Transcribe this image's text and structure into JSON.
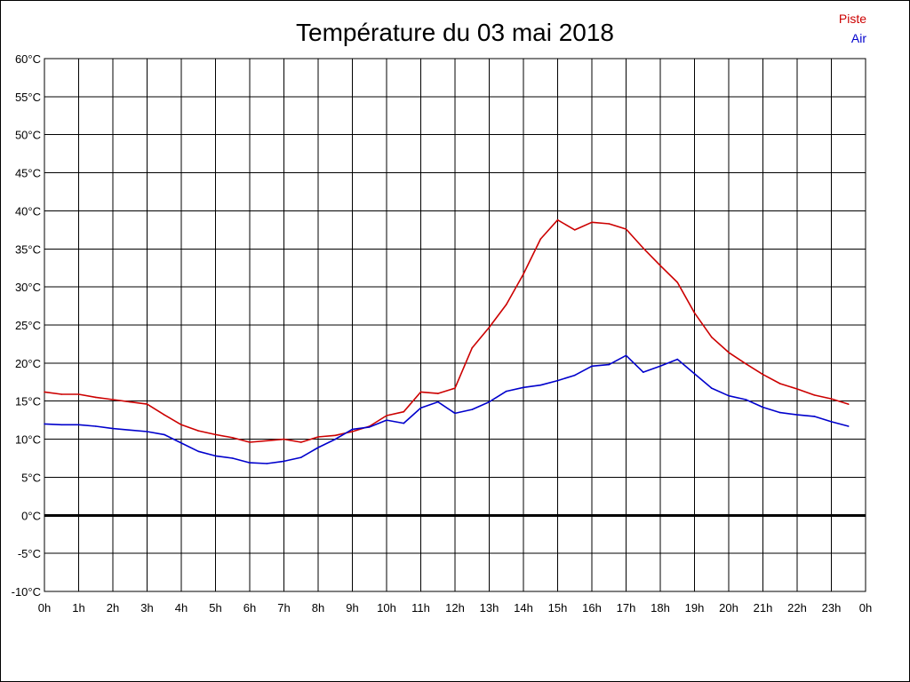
{
  "chart_data": {
    "type": "line",
    "title": "Température du 03 mai 2018",
    "y_ticks": [
      "60°C",
      "55°C",
      "50°C",
      "45°C",
      "40°C",
      "35°C",
      "30°C",
      "25°C",
      "20°C",
      "15°C",
      "10°C",
      "5°C",
      "0°C",
      "-5°C",
      "-10°C"
    ],
    "ylim": [
      -10,
      60
    ],
    "y_step": 5,
    "x_ticks": [
      "0h",
      "1h",
      "2h",
      "3h",
      "4h",
      "5h",
      "6h",
      "7h",
      "8h",
      "9h",
      "10h",
      "11h",
      "12h",
      "13h",
      "14h",
      "15h",
      "16h",
      "17h",
      "18h",
      "19h",
      "20h",
      "21h",
      "22h",
      "23h",
      "0h"
    ],
    "xlim": [
      0,
      24
    ],
    "grid": true,
    "legend_position": "top-right",
    "baseline": 0,
    "series": [
      {
        "name": "Piste",
        "color": "#cc0000",
        "x": [
          0,
          0.5,
          1,
          1.5,
          2,
          2.5,
          3,
          3.5,
          4,
          4.5,
          5,
          5.5,
          6,
          6.5,
          7,
          7.5,
          8,
          8.5,
          9,
          9.5,
          10,
          10.5,
          11,
          11.5,
          12,
          12.5,
          13,
          13.5,
          14,
          14.5,
          15,
          15.5,
          16,
          16.5,
          17,
          17.5,
          18,
          18.5,
          19,
          19.5,
          20,
          20.5,
          21,
          21.5,
          22,
          22.5,
          23,
          23.5
        ],
        "values": [
          16.2,
          15.9,
          15.9,
          15.5,
          15.2,
          14.9,
          14.6,
          13.2,
          11.9,
          11.1,
          10.6,
          10.2,
          9.6,
          9.8,
          10.0,
          9.6,
          10.3,
          10.5,
          11.0,
          11.7,
          13.1,
          13.6,
          16.2,
          16.0,
          16.7,
          22.0,
          24.7,
          27.7,
          31.7,
          36.3,
          38.8,
          37.5,
          38.5,
          38.3,
          37.6,
          35.1,
          32.8,
          30.6,
          26.6,
          23.4,
          21.4,
          19.9,
          18.5,
          17.3,
          16.6,
          15.8,
          15.3,
          14.6
        ]
      },
      {
        "name": "Air",
        "color": "#0000cc",
        "x": [
          0,
          0.5,
          1,
          1.5,
          2,
          2.5,
          3,
          3.5,
          4,
          4.5,
          5,
          5.5,
          6,
          6.5,
          7,
          7.5,
          8,
          8.5,
          9,
          9.5,
          10,
          10.5,
          11,
          11.5,
          12,
          12.5,
          13,
          13.5,
          14,
          14.5,
          15,
          15.5,
          16,
          16.5,
          17,
          17.5,
          18,
          18.5,
          19,
          19.5,
          20,
          20.5,
          21,
          21.5,
          22,
          22.5,
          23,
          23.5
        ],
        "values": [
          12.0,
          11.9,
          11.9,
          11.7,
          11.4,
          11.2,
          11.0,
          10.6,
          9.5,
          8.4,
          7.8,
          7.5,
          6.9,
          6.8,
          7.1,
          7.6,
          8.9,
          10.0,
          11.3,
          11.6,
          12.5,
          12.1,
          14.1,
          14.9,
          13.4,
          13.9,
          14.9,
          16.3,
          16.8,
          17.1,
          17.7,
          18.4,
          19.6,
          19.8,
          21.0,
          18.8,
          19.6,
          20.5,
          18.6,
          16.7,
          15.7,
          15.2,
          14.2,
          13.5,
          13.2,
          13.0,
          12.3,
          11.7
        ]
      }
    ]
  }
}
